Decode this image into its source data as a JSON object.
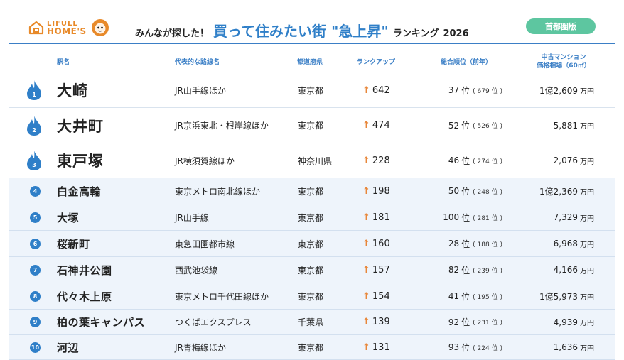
{
  "header": {
    "logo_line1": "LIFULL",
    "logo_line2": "HOME'S",
    "title_pre": "みんなが探した！",
    "title_main": "買って住みたい街 \"急上昇\"",
    "title_post": "ランキング",
    "title_year": "2026",
    "region_label": "首都圏版"
  },
  "columns": {
    "station": "駅名",
    "line": "代表的な路線名",
    "pref": "都道府県",
    "rank_up": "ランクアップ",
    "overall": "総合順位（前年）",
    "price_l1": "中古マンション",
    "price_l2": "価格相場（60㎡）"
  },
  "colors": {
    "accent": "#2f7fc8",
    "arrow": "#e8873a",
    "badge": "#5dc6a0",
    "logo": "#e88a2a"
  },
  "rows": [
    {
      "rank": "1",
      "station": "大崎",
      "line": "JR山手線ほか",
      "pref": "東京都",
      "up": "642",
      "overall": "37",
      "overall_unit": "位",
      "prev": "679",
      "prev_unit": "位",
      "price": "1億2,609",
      "price_unit": "万円"
    },
    {
      "rank": "2",
      "station": "大井町",
      "line": "JR京浜東北・根岸線ほか",
      "pref": "東京都",
      "up": "474",
      "overall": "52",
      "overall_unit": "位",
      "prev": "526",
      "prev_unit": "位",
      "price": "5,881",
      "price_unit": "万円"
    },
    {
      "rank": "3",
      "station": "東戸塚",
      "line": "JR横須賀線ほか",
      "pref": "神奈川県",
      "up": "228",
      "overall": "46",
      "overall_unit": "位",
      "prev": "274",
      "prev_unit": "位",
      "price": "2,076",
      "price_unit": "万円"
    },
    {
      "rank": "4",
      "station": "白金高輪",
      "line": "東京メトロ南北線ほか",
      "pref": "東京都",
      "up": "198",
      "overall": "50",
      "overall_unit": "位",
      "prev": "248",
      "prev_unit": "位",
      "price": "1億2,369",
      "price_unit": "万円"
    },
    {
      "rank": "5",
      "station": "大塚",
      "line": "JR山手線",
      "pref": "東京都",
      "up": "181",
      "overall": "100",
      "overall_unit": "位",
      "prev": "281",
      "prev_unit": "位",
      "price": "7,329",
      "price_unit": "万円"
    },
    {
      "rank": "6",
      "station": "桜新町",
      "line": "東急田園都市線",
      "pref": "東京都",
      "up": "160",
      "overall": "28",
      "overall_unit": "位",
      "prev": "188",
      "prev_unit": "位",
      "price": "6,968",
      "price_unit": "万円"
    },
    {
      "rank": "7",
      "station": "石神井公園",
      "line": "西武池袋線",
      "pref": "東京都",
      "up": "157",
      "overall": "82",
      "overall_unit": "位",
      "prev": "239",
      "prev_unit": "位",
      "price": "4,166",
      "price_unit": "万円"
    },
    {
      "rank": "8",
      "station": "代々木上原",
      "line": "東京メトロ千代田線ほか",
      "pref": "東京都",
      "up": "154",
      "overall": "41",
      "overall_unit": "位",
      "prev": "195",
      "prev_unit": "位",
      "price": "1億5,973",
      "price_unit": "万円"
    },
    {
      "rank": "9",
      "station": "柏の葉キャンパス",
      "line": "つくばエクスプレス",
      "pref": "千葉県",
      "up": "139",
      "overall": "92",
      "overall_unit": "位",
      "prev": "231",
      "prev_unit": "位",
      "price": "4,939",
      "price_unit": "万円"
    },
    {
      "rank": "10",
      "station": "河辺",
      "line": "JR青梅線ほか",
      "pref": "東京都",
      "up": "131",
      "overall": "93",
      "overall_unit": "位",
      "prev": "224",
      "prev_unit": "位",
      "price": "1,636",
      "price_unit": "万円"
    }
  ]
}
